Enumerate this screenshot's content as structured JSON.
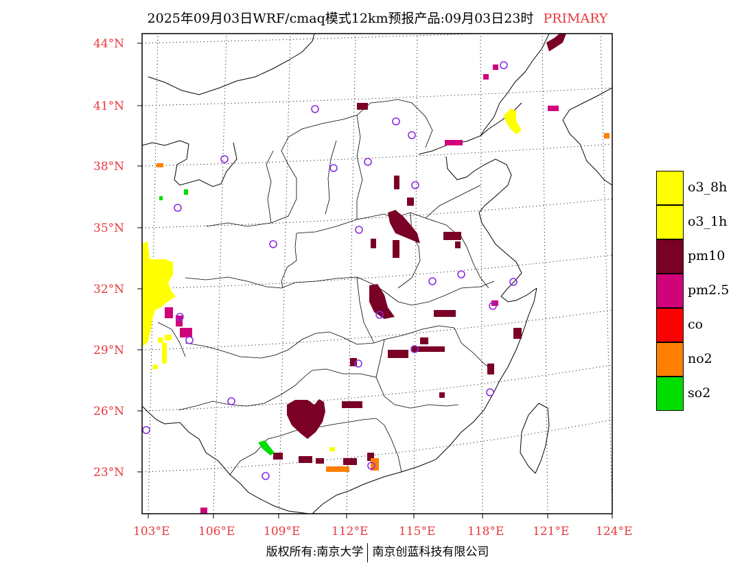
{
  "header": {
    "title": "2025年09月03日WRF/cmaq模式12km预报产品:09月03日23时",
    "tag": "PRIMARY"
  },
  "axes": {
    "lat_labels": [
      "44°N",
      "41°N",
      "38°N",
      "35°N",
      "32°N",
      "29°N",
      "26°N",
      "23°N"
    ],
    "lon_labels": [
      "103°E",
      "106°E",
      "109°E",
      "112°E",
      "115°E",
      "118°E",
      "121°E",
      "124°E"
    ]
  },
  "legend": {
    "items": [
      {
        "label": "o3_8h",
        "color": "#ffff00"
      },
      {
        "label": "o3_1h",
        "color": "#ffff00"
      },
      {
        "label": "pm10",
        "color": "#7a0026"
      },
      {
        "label": "pm2.5",
        "color": "#d0037a"
      },
      {
        "label": "co",
        "color": "#ff0000"
      },
      {
        "label": "no2",
        "color": "#ff7f00"
      },
      {
        "label": "so2",
        "color": "#00dd00"
      }
    ]
  },
  "footer": {
    "copyright_left": "版权所有:南京大学",
    "copyright_right": "南京创蓝科技有限公司"
  }
}
